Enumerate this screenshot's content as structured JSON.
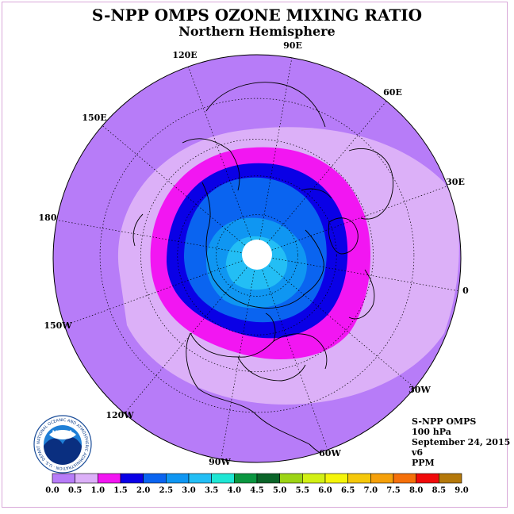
{
  "title": "S-NPP OMPS OZONE MIXING RATIO",
  "subtitle": "Northern Hemisphere",
  "longitude_labels": {
    "lon_90e": "90E",
    "lon_60e": "60E",
    "lon_30e": "30E",
    "lon_0": "0",
    "lon_30w": "30W",
    "lon_60w": "60W",
    "lon_90w": "90W",
    "lon_120w": "120W",
    "lon_150w": "150W",
    "lon_180": "180",
    "lon_150e": "150E",
    "lon_120e": "120E"
  },
  "info": {
    "instrument": "S-NPP OMPS",
    "level": "100 hPa",
    "date": "September 24, 2015",
    "version": "v6",
    "units": "PPM"
  },
  "logo": {
    "text": "NOAA",
    "ring_text": "NATIONAL OCEANIC AND ATMOSPHERIC ADMINISTRATION · U.S. DEPARTMENT OF COMMERCE"
  },
  "colorbar": {
    "labels": [
      "0.0",
      "0.5",
      "1.0",
      "1.5",
      "2.0",
      "2.5",
      "3.0",
      "3.5",
      "4.0",
      "4.5",
      "5.0",
      "5.5",
      "6.0",
      "6.5",
      "7.0",
      "7.5",
      "8.0",
      "8.5",
      "9.0"
    ],
    "colors": [
      "#b77cf8",
      "#dcb0f8",
      "#f216f2",
      "#0a00e6",
      "#0a64f0",
      "#0f96f2",
      "#23bef5",
      "#1ee6d4",
      "#0a9640",
      "#0a6428",
      "#9cd414",
      "#d2f014",
      "#f5f50a",
      "#f5c80a",
      "#f5a00a",
      "#f5700a",
      "#f00a0a",
      "#b4780a"
    ]
  },
  "map_colors": {
    "outer": "#b77cf8",
    "band_05_10": "#dcb0f8",
    "band_10_15": "#f216f2",
    "band_15_20": "#0a00e6",
    "band_20_25": "#0a64f0",
    "band_25_30": "#0f96f2",
    "band_30_35": "#23bef5",
    "missing_pole": "#ffffff"
  }
}
